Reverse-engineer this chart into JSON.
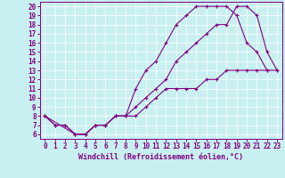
{
  "title": "",
  "xlabel": "Windchill (Refroidissement éolien,°C)",
  "bg_color": "#c8f0f0",
  "line_color": "#800080",
  "xlim": [
    -0.5,
    23.5
  ],
  "ylim": [
    5.5,
    20.5
  ],
  "xticks": [
    0,
    1,
    2,
    3,
    4,
    5,
    6,
    7,
    8,
    9,
    10,
    11,
    12,
    13,
    14,
    15,
    16,
    17,
    18,
    19,
    20,
    21,
    22,
    23
  ],
  "yticks": [
    6,
    7,
    8,
    9,
    10,
    11,
    12,
    13,
    14,
    15,
    16,
    17,
    18,
    19,
    20
  ],
  "line1_x": [
    0,
    1,
    2,
    3,
    4,
    5,
    6,
    7,
    8,
    9,
    10,
    11,
    12,
    13,
    14,
    15,
    16,
    17,
    18,
    19,
    20,
    21,
    22
  ],
  "line1_y": [
    8,
    7,
    7,
    6,
    6,
    7,
    7,
    8,
    8,
    11,
    13,
    14,
    16,
    18,
    19,
    20,
    20,
    20,
    20,
    19,
    16,
    15,
    13
  ],
  "line2_x": [
    0,
    1,
    2,
    3,
    4,
    5,
    6,
    7,
    8,
    9,
    10,
    11,
    12,
    13,
    14,
    15,
    16,
    17,
    18,
    19,
    20,
    21,
    22,
    23
  ],
  "line2_y": [
    8,
    7,
    7,
    6,
    6,
    7,
    7,
    8,
    8,
    8,
    9,
    10,
    11,
    11,
    11,
    11,
    12,
    12,
    13,
    13,
    13,
    13,
    13,
    13
  ],
  "line3_x": [
    0,
    3,
    4,
    5,
    6,
    7,
    8,
    9,
    10,
    11,
    12,
    13,
    14,
    15,
    16,
    17,
    18,
    19,
    20,
    21,
    22,
    23
  ],
  "line3_y": [
    8,
    6,
    6,
    7,
    7,
    8,
    8,
    9,
    10,
    11,
    12,
    14,
    15,
    16,
    17,
    18,
    18,
    20,
    20,
    19,
    15,
    13
  ],
  "marker": "+",
  "markersize": 3,
  "linewidth": 0.8,
  "tick_fontsize": 5.5,
  "xlabel_fontsize": 6.0
}
